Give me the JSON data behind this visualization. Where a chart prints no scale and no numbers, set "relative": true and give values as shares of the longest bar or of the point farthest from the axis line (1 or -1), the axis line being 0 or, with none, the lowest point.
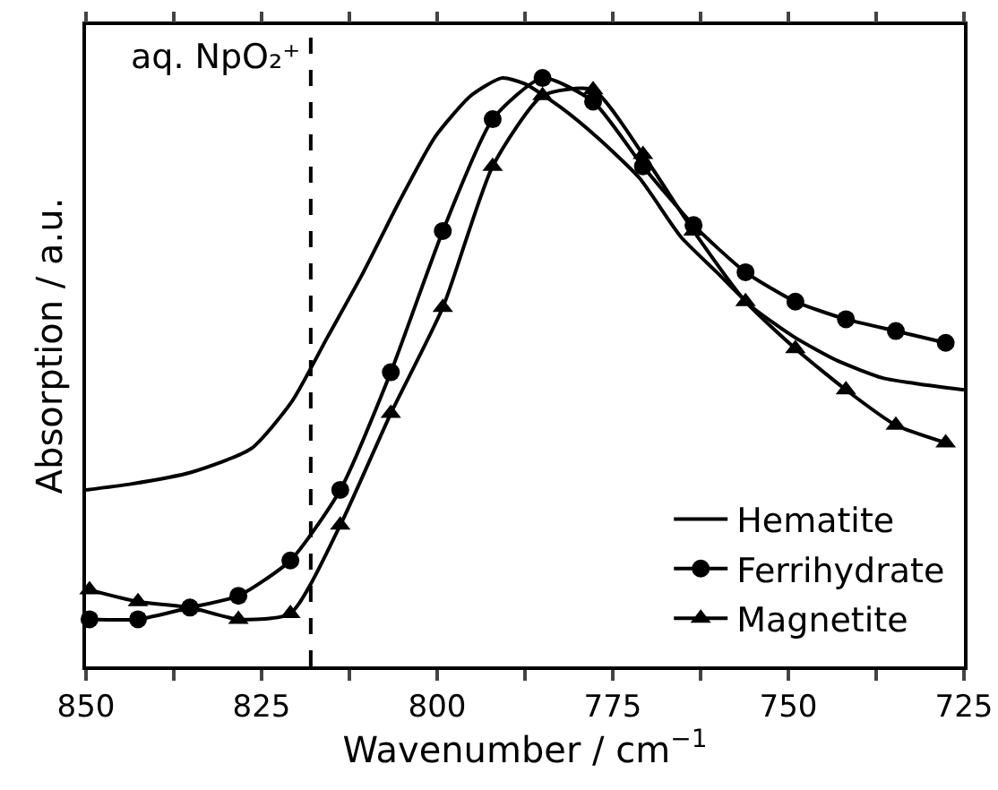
{
  "chart_data": {
    "type": "line",
    "xlabel": "Wavenumber / cm$^{−1}$",
    "ylabel": "Absorption / a.u.",
    "relative": true,
    "xlim": [
      850,
      725
    ],
    "xticks": [
      850,
      {
        "value": 837.5,
        "label": null
      },
      825,
      {
        "value": 812.5,
        "label": null
      },
      800,
      {
        "value": 787.5,
        "label": null
      },
      775,
      {
        "value": 762.5,
        "label": null
      },
      750,
      {
        "value": 737.5,
        "label": null
      },
      725
    ],
    "tick_labels": "x",
    "legend": "bottom right",
    "grid": false,
    "line_style": "solid",
    "ref_lines": [
      {
        "axis": "x",
        "value": 818,
        "label": "aq. NpO₂⁺",
        "line_style": "dashed",
        "color": "#000000"
      }
    ],
    "series": [
      {
        "name": "Hematite",
        "color": "#000000",
        "marker": "none",
        "x": [
          850,
          843.6,
          835,
          826.5,
          820.7,
          815.6,
          810.5,
          805.4,
          800.3,
          795.2,
          790.8,
          787.5,
          782.4,
          777.3,
          771.2,
          765.3,
          760.2,
          755.1,
          749.2,
          743.1,
          736.5,
          731.4,
          725
        ],
        "values": [
          0.3,
          0.31,
          0.33,
          0.37,
          0.45,
          0.56,
          0.67,
          0.79,
          0.9,
          0.97,
          1.0,
          0.99,
          0.95,
          0.9,
          0.83,
          0.73,
          0.67,
          0.61,
          0.56,
          0.52,
          0.49,
          0.48,
          0.47
        ]
      },
      {
        "name": "Ferrihydrate",
        "color": "#000000",
        "marker": "circle",
        "x": [
          849.5,
          842.6,
          835.2,
          828.3,
          820.9,
          813.8,
          806.6,
          799.2,
          792.1,
          785,
          777.8,
          770.7,
          763.5,
          756.1,
          749,
          741.8,
          734.7,
          727.6
        ],
        "values": [
          0.08,
          0.08,
          0.1,
          0.12,
          0.18,
          0.3,
          0.5,
          0.74,
          0.93,
          1.0,
          0.96,
          0.85,
          0.75,
          0.67,
          0.62,
          0.59,
          0.57,
          0.55
        ]
      },
      {
        "name": "Magnetite",
        "color": "#000000",
        "marker": "triangle",
        "x": [
          849.5,
          842.6,
          835.2,
          828.3,
          820.9,
          813.8,
          806.6,
          799.2,
          792.1,
          785,
          777.8,
          770.7,
          763.5,
          756.1,
          749,
          741.8,
          734.7,
          727.6
        ],
        "values": [
          0.13,
          0.11,
          0.1,
          0.08,
          0.09,
          0.24,
          0.43,
          0.61,
          0.85,
          0.97,
          0.98,
          0.87,
          0.74,
          0.62,
          0.54,
          0.47,
          0.41,
          0.38
        ]
      }
    ]
  }
}
